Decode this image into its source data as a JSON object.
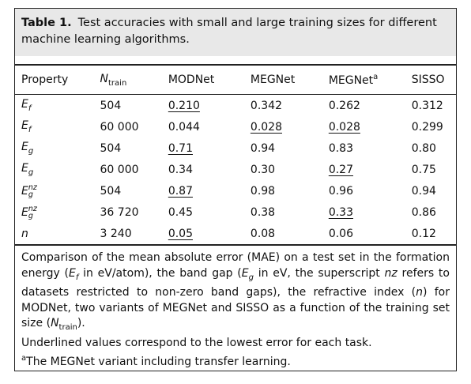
{
  "caption": {
    "label": "Table 1.",
    "text": "Test accuracies with small and large training sizes for different machine learning algorithms."
  },
  "table": {
    "header": [
      {
        "base": "Property"
      },
      {
        "base": "N",
        "sub": "train",
        "italic": true
      },
      {
        "base": "MODNet"
      },
      {
        "base": "MEGNet"
      },
      {
        "base": "MEGNet",
        "sup": "a"
      },
      {
        "base": "SISSO"
      }
    ],
    "rows": [
      {
        "property": {
          "base": "E",
          "sub": "f"
        },
        "n_train": "504",
        "values": [
          "0.210",
          "0.342",
          "0.262",
          "0.312"
        ],
        "underlined": [
          0
        ]
      },
      {
        "property": {
          "base": "E",
          "sub": "f"
        },
        "n_train": "60 000",
        "values": [
          "0.044",
          "0.028",
          "0.028",
          "0.299"
        ],
        "underlined": [
          1,
          2
        ]
      },
      {
        "property": {
          "base": "E",
          "sub": "g"
        },
        "n_train": "504",
        "values": [
          "0.71",
          "0.94",
          "0.83",
          "0.80"
        ],
        "underlined": [
          0
        ]
      },
      {
        "property": {
          "base": "E",
          "sub": "g"
        },
        "n_train": "60 000",
        "values": [
          "0.34",
          "0.30",
          "0.27",
          "0.75"
        ],
        "underlined": [
          2
        ]
      },
      {
        "property": {
          "base": "E",
          "sub": "g",
          "sup": "nz"
        },
        "n_train": "504",
        "values": [
          "0.87",
          "0.98",
          "0.96",
          "0.94"
        ],
        "underlined": [
          0
        ]
      },
      {
        "property": {
          "base": "E",
          "sub": "g",
          "sup": "nz"
        },
        "n_train": "36 720",
        "values": [
          "0.45",
          "0.38",
          "0.33",
          "0.86"
        ],
        "underlined": [
          2
        ]
      },
      {
        "property": {
          "base": "n"
        },
        "n_train": "3 240",
        "values": [
          "0.05",
          "0.08",
          "0.06",
          "0.12"
        ],
        "underlined": [
          0
        ]
      }
    ]
  },
  "notes": [
    {
      "runs": [
        {
          "text": "Comparison of the mean absolute error (MAE) on a test set in the formation energy ("
        },
        {
          "text": "E",
          "style": "i"
        },
        {
          "text": "f",
          "style": "isub"
        },
        {
          "text": " in eV/atom), the band gap ("
        },
        {
          "text": "E",
          "style": "i"
        },
        {
          "text": "g",
          "style": "isub"
        },
        {
          "text": " in eV, the superscript "
        },
        {
          "text": "nz",
          "style": "i"
        },
        {
          "text": " refers to datasets restricted to non-zero band gaps), the refractive index ("
        },
        {
          "text": "n",
          "style": "i"
        },
        {
          "text": ") for MODNet, two variants of MEGNet and SISSO as a function of the training set size ("
        },
        {
          "text": "N",
          "style": "i"
        },
        {
          "text": "train",
          "style": "sub"
        },
        {
          "text": ")."
        }
      ]
    },
    {
      "runs": [
        {
          "text": "Underlined values correspond to the lowest error for each task."
        }
      ]
    },
    {
      "runs": [
        {
          "text": "a",
          "style": "sup"
        },
        {
          "text": "The MEGNet variant including transfer learning."
        }
      ]
    }
  ]
}
